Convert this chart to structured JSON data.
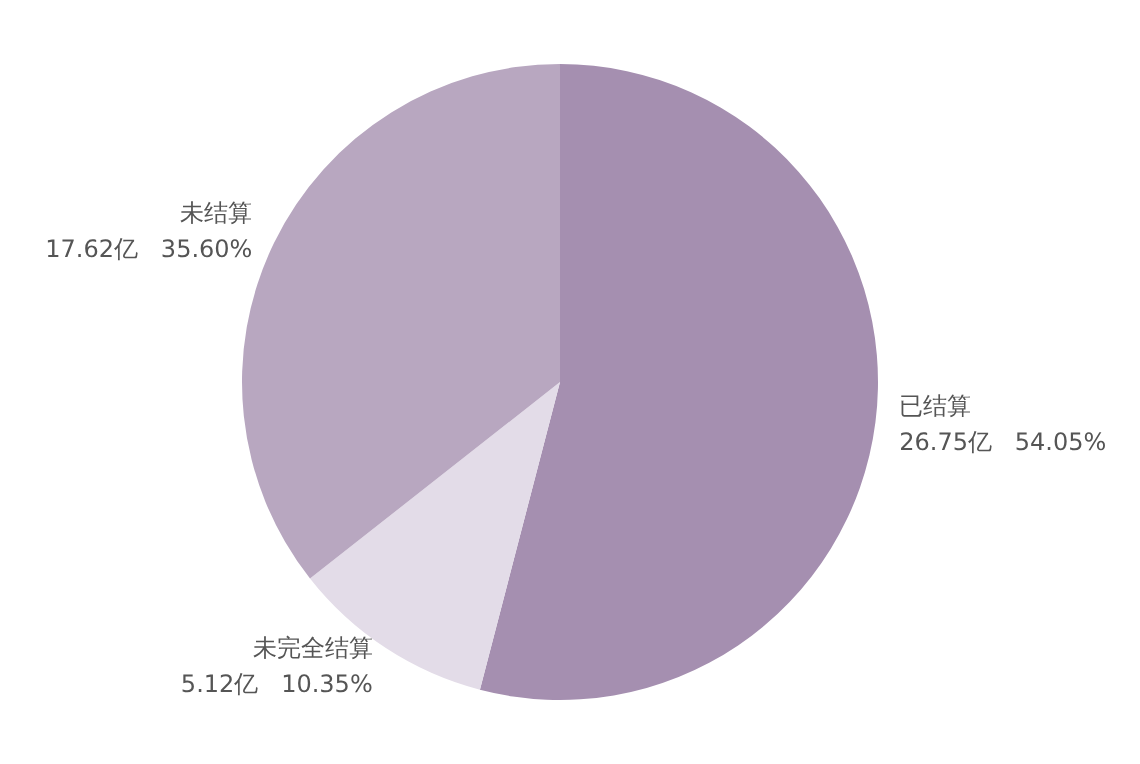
{
  "chart_data": {
    "type": "pie",
    "categories": [
      "已结算",
      "未完全结算",
      "未结算"
    ],
    "values": [
      26.75,
      5.12,
      17.62
    ],
    "colors": [
      "#a58fb0",
      "#e3dce8",
      "#b8a7c0"
    ],
    "value_labels": [
      "26.75亿   54.05%",
      "5.12亿   10.35%",
      "17.62亿   35.60%"
    ],
    "legend": false
  }
}
